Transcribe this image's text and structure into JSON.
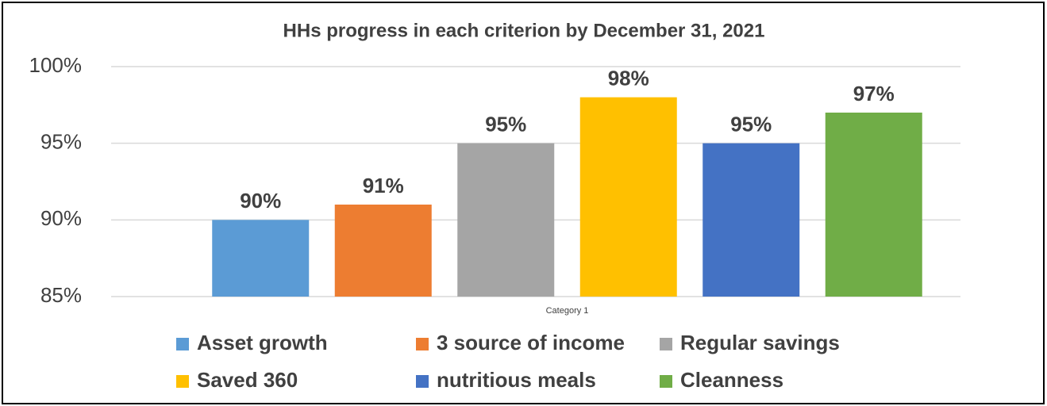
{
  "chart_data": {
    "type": "bar",
    "title": "HHs progress in each criterion by December 31, 2021",
    "categories": [
      "Category 1"
    ],
    "series": [
      {
        "name": "Asset growth",
        "color": "#5b9bd5",
        "values": [
          90
        ],
        "value_labels": [
          "90%"
        ]
      },
      {
        "name": "3 source of income",
        "color": "#ed7d31",
        "values": [
          91
        ],
        "value_labels": [
          "91%"
        ]
      },
      {
        "name": "Regular savings",
        "color": "#a5a5a5",
        "values": [
          95
        ],
        "value_labels": [
          "95%"
        ]
      },
      {
        "name": "Saved 360",
        "color": "#ffc000",
        "values": [
          98
        ],
        "value_labels": [
          "98%"
        ]
      },
      {
        "name": "nutritious meals",
        "color": "#4472c4",
        "values": [
          95
        ],
        "value_labels": [
          "95%"
        ]
      },
      {
        "name": "Cleanness",
        "color": "#70ad47",
        "values": [
          97
        ],
        "value_labels": [
          "97%"
        ]
      }
    ],
    "ylim": [
      85,
      100
    ],
    "yticks": [
      {
        "value": 85,
        "label": "85%"
      },
      {
        "value": 90,
        "label": "90%"
      },
      {
        "value": 95,
        "label": "95%"
      },
      {
        "value": 100,
        "label": "100%"
      }
    ],
    "grid": true,
    "legend": "bottom"
  }
}
